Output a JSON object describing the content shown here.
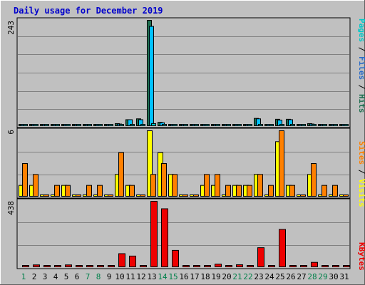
{
  "chart_data": {
    "type": "bar",
    "title": "Daily usage for December 2019",
    "days": [
      "1",
      "2",
      "3",
      "4",
      "5",
      "6",
      "7",
      "8",
      "9",
      "10",
      "11",
      "12",
      "13",
      "14",
      "15",
      "16",
      "17",
      "18",
      "19",
      "20",
      "21",
      "22",
      "23",
      "24",
      "25",
      "26",
      "27",
      "28",
      "29",
      "30",
      "31"
    ],
    "weekend_days": [
      "1",
      "7",
      "8",
      "14",
      "15",
      "21",
      "22",
      "28",
      "29"
    ],
    "colors": {
      "hits": "#1f6f50",
      "files": "#00c0ff",
      "pages": "#00c8c8",
      "visits": "#ffff00",
      "sites": "#ff8000",
      "kbytes": "#ee0000",
      "weekday_label": "#000000",
      "weekend_label": "#00804a",
      "title": "#0000cc"
    },
    "panels": [
      {
        "id": "hits",
        "ymax_label": "243",
        "ymax": 243,
        "grid": true,
        "side_label": [
          {
            "text": "Pages",
            "color": "#00c8c8"
          },
          {
            "text": " / ",
            "color": "#000000"
          },
          {
            "text": "Files",
            "color": "#2a6bc8"
          },
          {
            "text": " / ",
            "color": "#000000"
          },
          {
            "text": "Hits",
            "color": "#1f6f50"
          }
        ],
        "series": [
          {
            "name": "Hits",
            "color": "#1f6f50",
            "values": [
              3,
              3,
              1,
              1,
              1,
              0,
              1,
              1,
              0,
              5,
              14,
              16,
              243,
              8,
              0,
              0,
              0,
              3,
              3,
              2,
              3,
              2,
              17,
              1,
              15,
              15,
              0,
              5,
              1,
              1,
              0
            ]
          },
          {
            "name": "Files",
            "color": "#00c0ff",
            "values": [
              2,
              2,
              0,
              0,
              0,
              0,
              0,
              0,
              0,
              4,
              14,
              14,
              229,
              7,
              0,
              0,
              0,
              2,
              2,
              1,
              2,
              1,
              16,
              0,
              13,
              14,
              0,
              4,
              0,
              0,
              0
            ]
          },
          {
            "name": "Pages",
            "color": "#00c8c8",
            "values": [
              1,
              1,
              0,
              0,
              0,
              0,
              0,
              0,
              0,
              1,
              1,
              1,
              5,
              1,
              0,
              0,
              0,
              1,
              1,
              0,
              1,
              0,
              2,
              0,
              1,
              1,
              0,
              1,
              0,
              0,
              0
            ]
          }
        ]
      },
      {
        "id": "visits",
        "ymax_label": "6",
        "ymax": 6,
        "grid": true,
        "side_label": [
          {
            "text": "Sites",
            "color": "#ff8000"
          },
          {
            "text": " / ",
            "color": "#000000"
          },
          {
            "text": "Visits",
            "color": "#ffff00"
          }
        ],
        "series": [
          {
            "name": "Visits",
            "color": "#ffff00",
            "values": [
              1,
              1,
              0,
              0,
              1,
              0,
              0,
              0,
              0,
              2,
              1,
              0,
              6,
              4,
              2,
              0,
              0,
              1,
              1,
              0,
              1,
              1,
              2,
              0,
              5,
              1,
              0,
              2,
              0,
              0,
              0
            ]
          },
          {
            "name": "Sites",
            "color": "#ff8000",
            "values": [
              3,
              2,
              0,
              1,
              1,
              0,
              1,
              1,
              0,
              4,
              1,
              0,
              2,
              3,
              2,
              0,
              0,
              2,
              2,
              1,
              1,
              1,
              2,
              1,
              6,
              1,
              0,
              3,
              1,
              1,
              0
            ]
          }
        ]
      },
      {
        "id": "kbytes",
        "ymax_label": "438",
        "ymax": 438,
        "grid": true,
        "side_label": [
          {
            "text": "KBytes",
            "color": "#ee0000"
          }
        ],
        "series": [
          {
            "name": "KBytes",
            "color": "#ee0000",
            "values": [
              4,
              13,
              0,
              4,
              13,
              0,
              4,
              4,
              0,
              88,
              72,
              0,
              438,
              388,
              110,
              0,
              0,
              4,
              18,
              4,
              14,
              4,
              128,
              4,
              250,
              4,
              0,
              30,
              4,
              4,
              0
            ]
          }
        ]
      }
    ]
  }
}
